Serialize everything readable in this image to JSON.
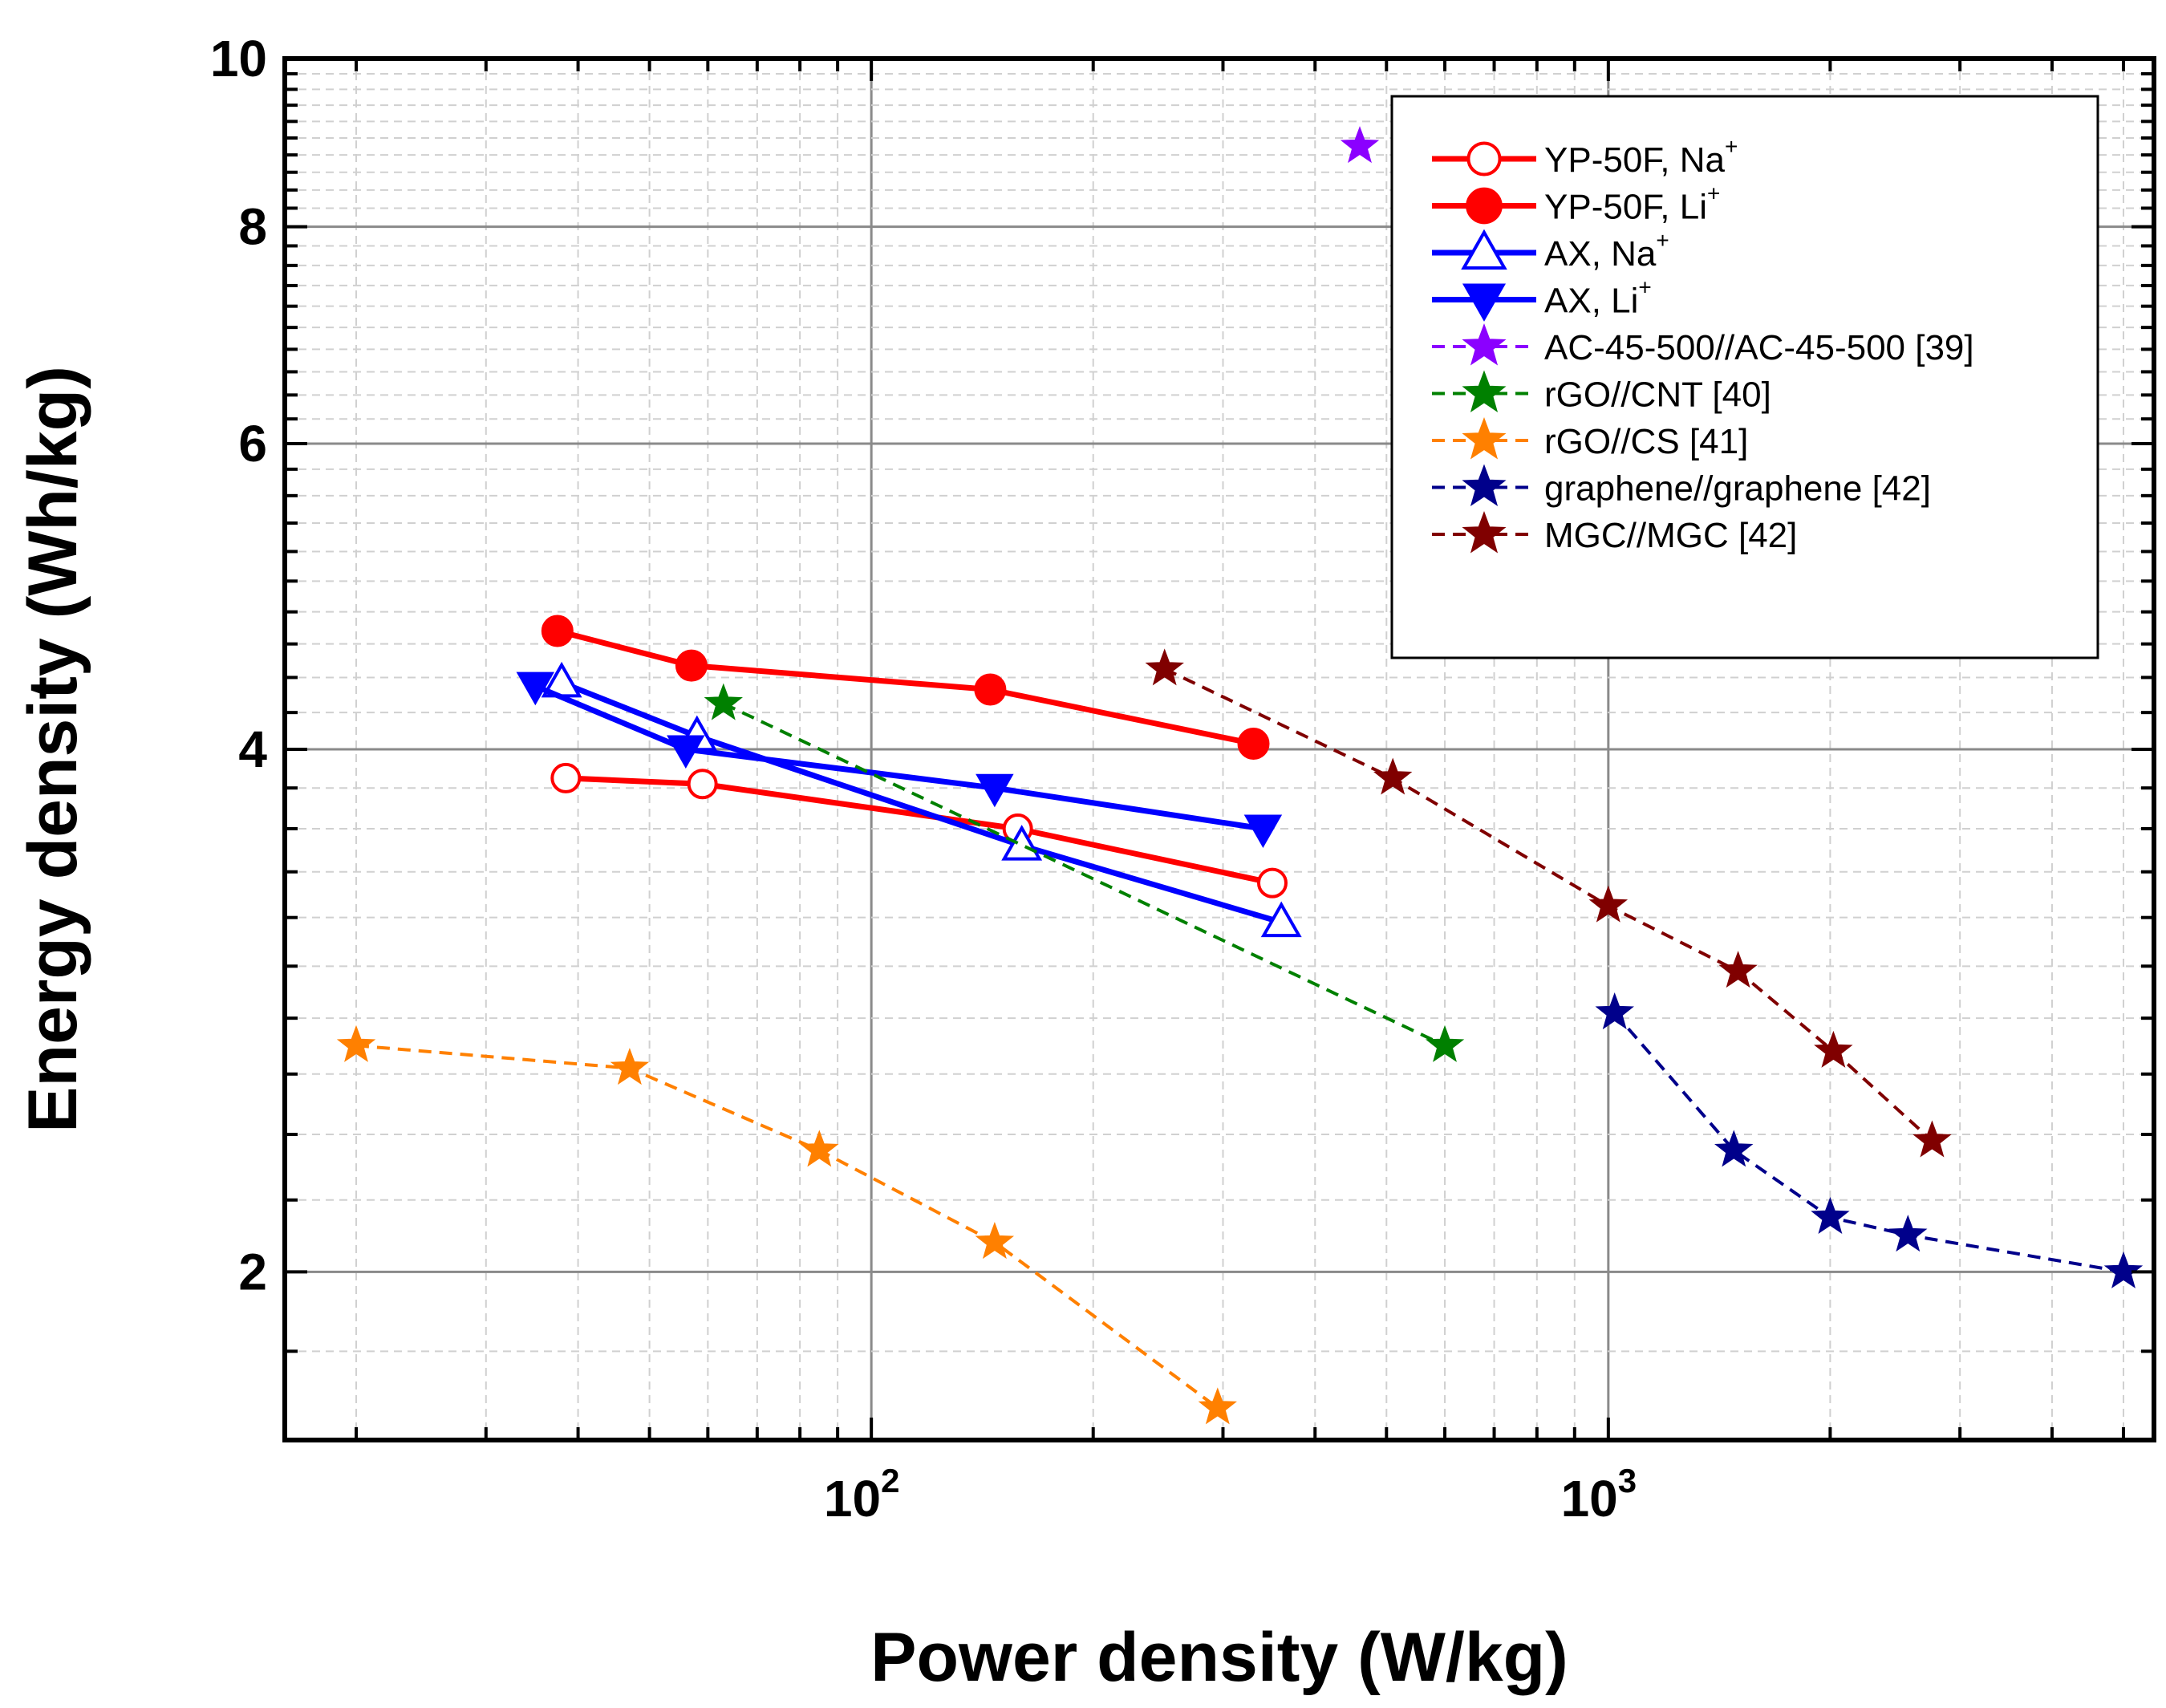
{
  "chart_data": {
    "type": "scatter",
    "title": "",
    "xlabel": "Power density (W/kg)",
    "ylabel": "Energy density (Wh/kg)",
    "xscale": "log",
    "yscale": "log",
    "xlim": [
      16,
      5500
    ],
    "ylim": [
      1.6,
      10
    ],
    "x_ticks": [
      {
        "value": 100,
        "base": "10",
        "exp": "2"
      },
      {
        "value": 1000,
        "base": "10",
        "exp": "3"
      }
    ],
    "y_ticks": [
      {
        "value": 2,
        "label": "2"
      },
      {
        "value": 4,
        "label": "4"
      },
      {
        "value": 6,
        "label": "6"
      },
      {
        "value": 8,
        "label": "8"
      },
      {
        "value": 10,
        "label": "10"
      }
    ],
    "grid": true,
    "legend_position": "top-right",
    "series": [
      {
        "name": "YP-50F, Na",
        "sup": "+",
        "color": "#ff0000",
        "line": "solid",
        "marker": "circle-open",
        "x": [
          38.5,
          59,
          158,
          350
        ],
        "y": [
          3.85,
          3.82,
          3.6,
          3.35
        ]
      },
      {
        "name": "YP-50F, Li",
        "sup": "+",
        "color": "#ff0000",
        "line": "solid",
        "marker": "circle-filled",
        "x": [
          37.5,
          57,
          145,
          330
        ],
        "y": [
          4.68,
          4.47,
          4.33,
          4.03
        ]
      },
      {
        "name": "AX, Na",
        "sup": "+",
        "color": "#0000ff",
        "line": "solid",
        "marker": "triangle-up-open",
        "x": [
          38,
          58,
          160,
          360
        ],
        "y": [
          4.37,
          4.07,
          3.52,
          3.18
        ]
      },
      {
        "name": "AX, Li",
        "sup": "+",
        "color": "#0000ff",
        "line": "solid",
        "marker": "triangle-down-filled",
        "x": [
          35,
          56,
          147,
          340
        ],
        "y": [
          4.35,
          4.0,
          3.8,
          3.6
        ]
      },
      {
        "name": "AC-45-500//AC-45-500 [39]",
        "sup": "",
        "color": "#8b00ff",
        "line": "dashed",
        "marker": "star",
        "x": [
          460
        ],
        "y": [
          8.9
        ]
      },
      {
        "name": "rGO//CNT [40]",
        "sup": "",
        "color": "#008000",
        "line": "dashed",
        "marker": "star",
        "x": [
          63,
          600
        ],
        "y": [
          4.25,
          2.7
        ]
      },
      {
        "name": "rGO//CS [41]",
        "sup": "",
        "color": "#ff8000",
        "line": "dashed",
        "marker": "star",
        "x": [
          20,
          47,
          85,
          147,
          295
        ],
        "y": [
          2.7,
          2.62,
          2.35,
          2.08,
          1.67
        ]
      },
      {
        "name": "graphene//graphene [42]",
        "sup": "",
        "color": "#00008b",
        "line": "dashed",
        "marker": "star",
        "x": [
          1020,
          1480,
          2000,
          2550,
          5000
        ],
        "y": [
          2.82,
          2.35,
          2.15,
          2.1,
          2.0
        ]
      },
      {
        "name": "MGC//MGC [42]",
        "sup": "",
        "color": "#800000",
        "line": "dashed",
        "marker": "star",
        "x": [
          250,
          510,
          1000,
          1500,
          2020,
          2750
        ],
        "y": [
          4.45,
          3.85,
          3.25,
          2.98,
          2.68,
          2.38
        ]
      }
    ]
  }
}
